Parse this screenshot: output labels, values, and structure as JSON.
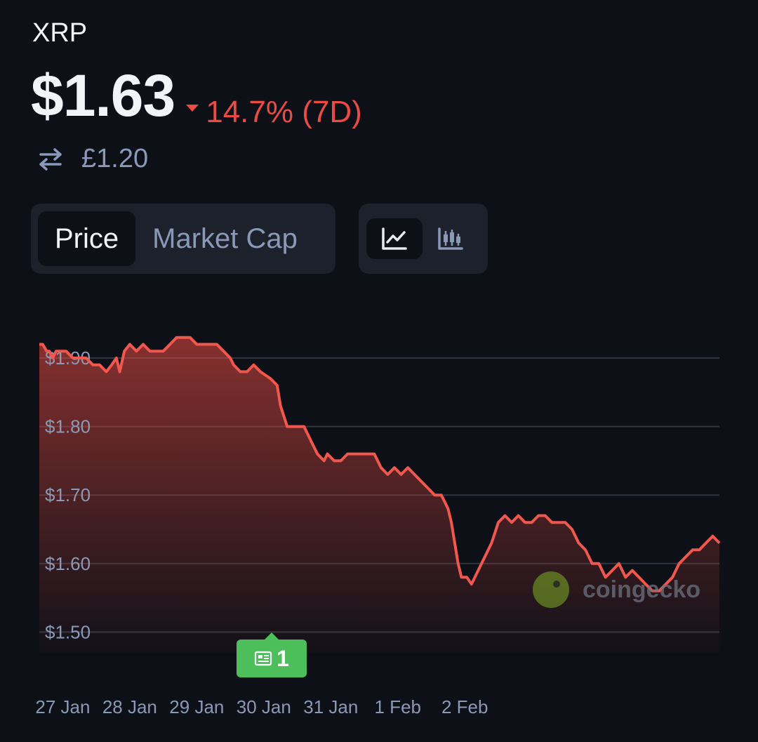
{
  "header": {
    "coin_name": "XRP",
    "price": "$1.63",
    "change": "14.7% (7D)",
    "change_direction": "down",
    "converted_price": "£1.20"
  },
  "tabs": {
    "price_label": "Price",
    "market_cap_label": "Market Cap",
    "active": "Price"
  },
  "chart_types": {
    "active": "line",
    "line_icon": "line-chart-icon",
    "candle_icon": "candlestick-chart-icon"
  },
  "news_badge": {
    "count": "1",
    "icon": "newspaper-icon"
  },
  "watermark": "coingecko",
  "colors": {
    "down": "#ea4b43",
    "accent_line": "#f0574d",
    "badge": "#4cbf5b",
    "background": "#0d1017"
  },
  "chart_data": {
    "type": "area",
    "title": "",
    "xlabel": "",
    "ylabel": "",
    "ylim": [
      1.47,
      1.94
    ],
    "y_ticks": [
      "$1.90",
      "$1.80",
      "$1.70",
      "$1.60",
      "$1.50"
    ],
    "y_tick_values": [
      1.9,
      1.8,
      1.7,
      1.6,
      1.5
    ],
    "x_ticks": [
      "27 Jan",
      "28 Jan",
      "29 Jan",
      "30 Jan",
      "31 Jan",
      "1 Feb",
      "2 Feb"
    ],
    "x_tick_values": [
      0.35,
      1.35,
      2.35,
      3.35,
      4.35,
      5.35,
      6.35
    ],
    "grid": true,
    "series": [
      {
        "values": [
          [
            0.0,
            1.92
          ],
          [
            0.05,
            1.92
          ],
          [
            0.11,
            1.91
          ],
          [
            0.15,
            1.91
          ],
          [
            0.2,
            1.9
          ],
          [
            0.25,
            1.91
          ],
          [
            0.3,
            1.91
          ],
          [
            0.4,
            1.91
          ],
          [
            0.5,
            1.9
          ],
          [
            0.6,
            1.9
          ],
          [
            0.7,
            1.9
          ],
          [
            0.8,
            1.89
          ],
          [
            0.9,
            1.89
          ],
          [
            1.0,
            1.88
          ],
          [
            1.08,
            1.89
          ],
          [
            1.15,
            1.9
          ],
          [
            1.2,
            1.88
          ],
          [
            1.27,
            1.91
          ],
          [
            1.35,
            1.92
          ],
          [
            1.45,
            1.91
          ],
          [
            1.55,
            1.92
          ],
          [
            1.65,
            1.91
          ],
          [
            1.75,
            1.91
          ],
          [
            1.85,
            1.91
          ],
          [
            1.95,
            1.92
          ],
          [
            2.05,
            1.93
          ],
          [
            2.15,
            1.93
          ],
          [
            2.25,
            1.93
          ],
          [
            2.35,
            1.92
          ],
          [
            2.45,
            1.92
          ],
          [
            2.55,
            1.92
          ],
          [
            2.65,
            1.92
          ],
          [
            2.75,
            1.91
          ],
          [
            2.85,
            1.9
          ],
          [
            2.9,
            1.89
          ],
          [
            3.0,
            1.88
          ],
          [
            3.1,
            1.88
          ],
          [
            3.2,
            1.89
          ],
          [
            3.3,
            1.88
          ],
          [
            3.45,
            1.87
          ],
          [
            3.55,
            1.86
          ],
          [
            3.6,
            1.83
          ],
          [
            3.7,
            1.8
          ],
          [
            3.75,
            1.8
          ],
          [
            3.85,
            1.8
          ],
          [
            3.95,
            1.8
          ],
          [
            4.0,
            1.79
          ],
          [
            4.1,
            1.77
          ],
          [
            4.15,
            1.76
          ],
          [
            4.25,
            1.75
          ],
          [
            4.3,
            1.76
          ],
          [
            4.4,
            1.75
          ],
          [
            4.5,
            1.75
          ],
          [
            4.6,
            1.76
          ],
          [
            4.7,
            1.76
          ],
          [
            4.8,
            1.76
          ],
          [
            4.9,
            1.76
          ],
          [
            5.0,
            1.76
          ],
          [
            5.05,
            1.75
          ],
          [
            5.1,
            1.74
          ],
          [
            5.2,
            1.73
          ],
          [
            5.3,
            1.74
          ],
          [
            5.4,
            1.73
          ],
          [
            5.5,
            1.74
          ],
          [
            5.6,
            1.73
          ],
          [
            5.7,
            1.72
          ],
          [
            5.8,
            1.71
          ],
          [
            5.9,
            1.7
          ],
          [
            6.0,
            1.7
          ],
          [
            6.1,
            1.68
          ],
          [
            6.15,
            1.66
          ],
          [
            6.2,
            1.63
          ],
          [
            6.25,
            1.6
          ],
          [
            6.3,
            1.58
          ],
          [
            6.38,
            1.58
          ],
          [
            6.45,
            1.57
          ],
          [
            6.55,
            1.59
          ],
          [
            6.65,
            1.61
          ],
          [
            6.75,
            1.63
          ],
          [
            6.85,
            1.66
          ],
          [
            6.95,
            1.67
          ],
          [
            7.05,
            1.66
          ],
          [
            7.15,
            1.67
          ],
          [
            7.25,
            1.66
          ],
          [
            7.35,
            1.66
          ],
          [
            7.45,
            1.67
          ],
          [
            7.55,
            1.67
          ],
          [
            7.65,
            1.66
          ],
          [
            7.75,
            1.66
          ],
          [
            7.85,
            1.66
          ],
          [
            7.95,
            1.65
          ],
          [
            8.05,
            1.63
          ],
          [
            8.15,
            1.62
          ],
          [
            8.25,
            1.6
          ],
          [
            8.35,
            1.6
          ],
          [
            8.45,
            1.58
          ],
          [
            8.55,
            1.59
          ],
          [
            8.65,
            1.6
          ],
          [
            8.75,
            1.58
          ],
          [
            8.85,
            1.59
          ],
          [
            8.95,
            1.58
          ],
          [
            9.05,
            1.57
          ],
          [
            9.15,
            1.56
          ],
          [
            9.25,
            1.56
          ],
          [
            9.35,
            1.57
          ],
          [
            9.45,
            1.58
          ],
          [
            9.55,
            1.6
          ],
          [
            9.65,
            1.61
          ],
          [
            9.75,
            1.62
          ],
          [
            9.85,
            1.62
          ],
          [
            9.95,
            1.63
          ],
          [
            10.05,
            1.64
          ],
          [
            10.15,
            1.63
          ]
        ]
      }
    ]
  }
}
